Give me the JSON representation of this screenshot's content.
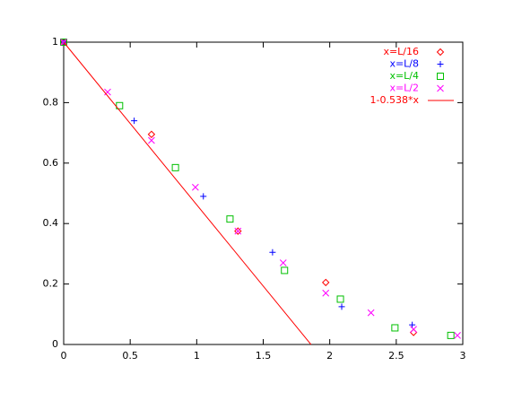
{
  "chart_data": {
    "type": "scatter",
    "xlim": [
      0,
      3
    ],
    "ylim": [
      0,
      1
    ],
    "xticks": [
      0,
      0.5,
      1,
      1.5,
      2,
      2.5,
      3
    ],
    "yticks": [
      0,
      0.2,
      0.4,
      0.6,
      0.8,
      1
    ],
    "legend": "top-right",
    "series": [
      {
        "name": "x=L/16",
        "color": "#ff0000",
        "marker": "diamond",
        "x": [
          0,
          0.66,
          1.31,
          1.97,
          2.63
        ],
        "values": [
          1,
          0.695,
          0.375,
          0.205,
          0.04
        ]
      },
      {
        "name": "x=L/8",
        "color": "#0000ff",
        "marker": "plus",
        "x": [
          0,
          0.53,
          1.05,
          1.57,
          2.09,
          2.62
        ],
        "values": [
          1,
          0.74,
          0.49,
          0.305,
          0.125,
          0.065
        ]
      },
      {
        "name": "x=L/4",
        "color": "#00c000",
        "marker": "square",
        "x": [
          0,
          0.42,
          0.84,
          1.25,
          1.66,
          2.08,
          2.49,
          2.91
        ],
        "values": [
          1,
          0.79,
          0.585,
          0.415,
          0.245,
          0.15,
          0.055,
          0.03
        ]
      },
      {
        "name": "x=L/2",
        "color": "#ff00ff",
        "marker": "cross",
        "x": [
          0,
          0.33,
          0.66,
          0.99,
          1.31,
          1.65,
          1.97,
          2.31,
          2.63,
          2.96
        ],
        "values": [
          1,
          0.835,
          0.675,
          0.52,
          0.375,
          0.27,
          0.17,
          0.105,
          0.05,
          0.03
        ]
      },
      {
        "name": "1-0.538*x",
        "color": "#ff0000",
        "marker": "line",
        "x": [
          0,
          1.859
        ],
        "values": [
          1,
          0
        ]
      }
    ]
  }
}
